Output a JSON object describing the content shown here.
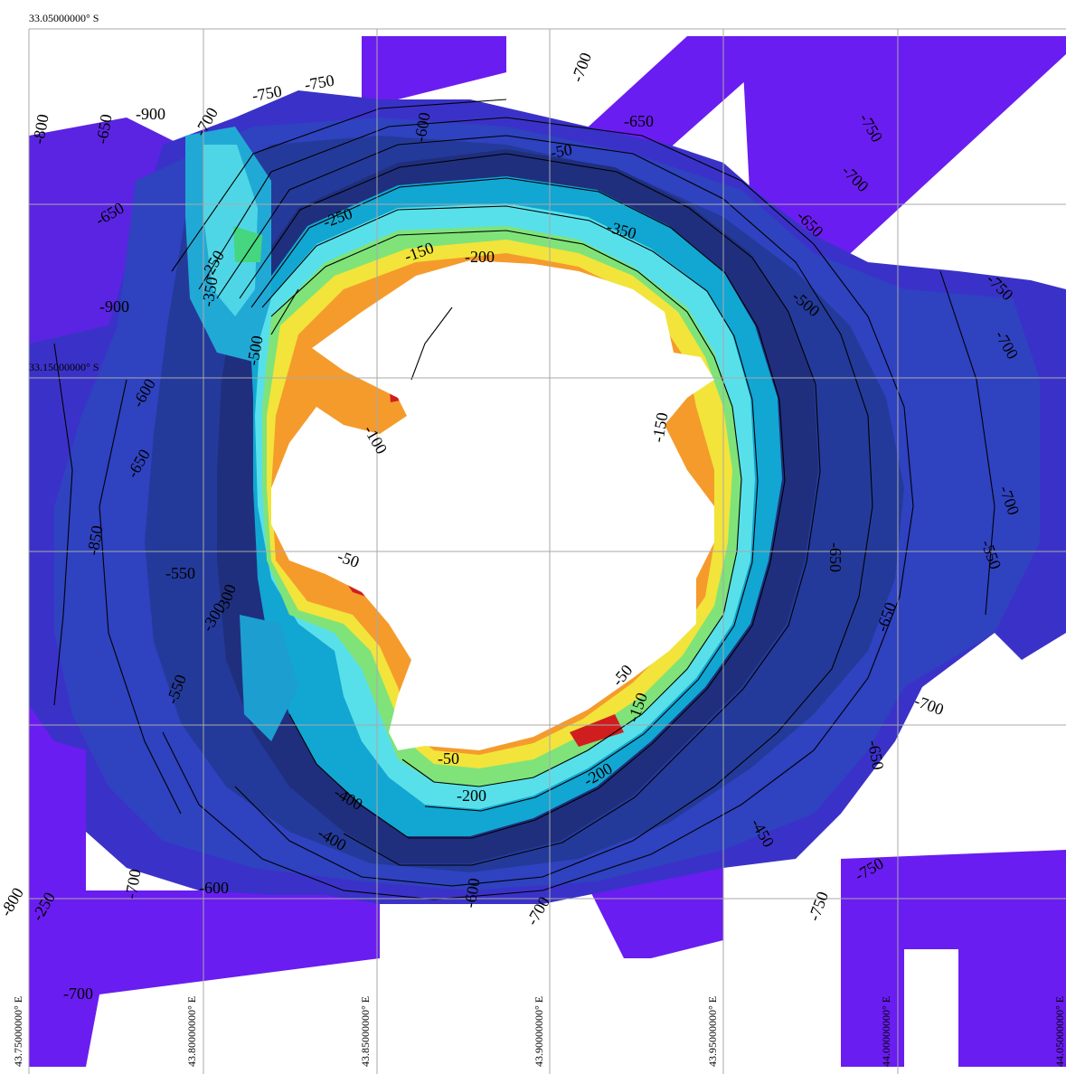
{
  "map": {
    "latitude_labels": [
      "33.05000000° S",
      "33.15000000° S"
    ],
    "longitude_labels": [
      "43.75000000° E",
      "43.80000000° E",
      "43.85000000° E",
      "43.90000000° E",
      "43.95000000° E",
      "44.00000000° E",
      "44.05000000° E"
    ],
    "depth_labels": [
      "-750",
      "-750",
      "-900",
      "-700",
      "-800",
      "-650",
      "-600",
      "-700",
      "-650",
      "-750",
      "-700",
      "-650",
      "-750",
      "-700",
      "-600",
      "-650",
      "-850",
      "-550",
      "-500",
      "-400",
      "-300",
      "-200",
      "-200",
      "-350",
      "-250",
      "-250",
      "-100",
      "-150",
      "-50",
      "-50",
      "-50",
      "-200",
      "-300",
      "-400",
      "-600",
      "-700",
      "-250",
      "-700",
      "-800",
      "-900",
      "-650",
      "-650",
      "-700",
      "-450",
      "-750",
      "-600",
      "-700",
      "-650",
      "-550",
      "-700",
      "-750",
      "-500",
      "-350",
      "-150",
      "-150",
      "-50",
      "-550",
      "-650"
    ],
    "colors": {
      "deep": "#6a1df0",
      "mid_deep": "#2448c8",
      "navy": "#1c2f8a",
      "teal": "#11a8d4",
      "cyan": "#56e2ec",
      "green": "#4fe07a",
      "yellow": "#f4e436",
      "orange": "#f59b2c",
      "red": "#d01e1e",
      "grid": "#a9a9a9",
      "contour": "#000000"
    }
  }
}
